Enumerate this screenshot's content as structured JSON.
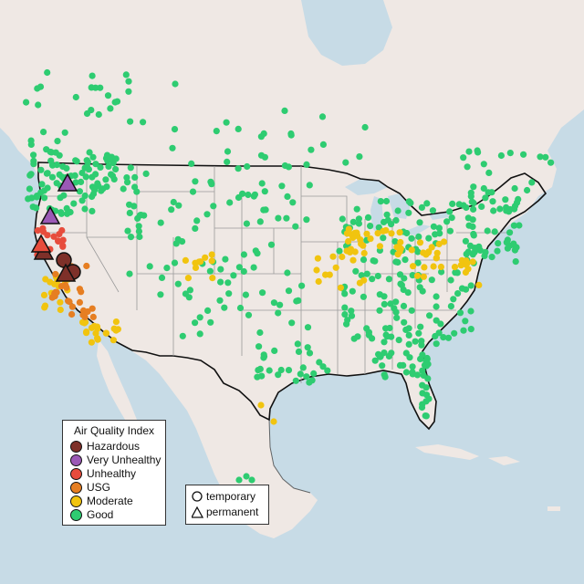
{
  "legend": {
    "title": "Air Quality Index",
    "categories": [
      {
        "label": "Hazardous",
        "color": "#7e3029"
      },
      {
        "label": "Very Unhealthy",
        "color": "#9b59b6"
      },
      {
        "label": "Unhealthy",
        "color": "#e74c3c"
      },
      {
        "label": "USG",
        "color": "#e67e22"
      },
      {
        "label": "Moderate",
        "color": "#f1c40f"
      },
      {
        "label": "Good",
        "color": "#2ecc71"
      }
    ]
  },
  "type_legend": {
    "temporary": "temporary",
    "permanent": "permanent"
  },
  "colors": {
    "ocean": "#c7dbe6",
    "land": "#efe8e4",
    "border": "#111111",
    "state_border": "#9a9a9a"
  }
}
